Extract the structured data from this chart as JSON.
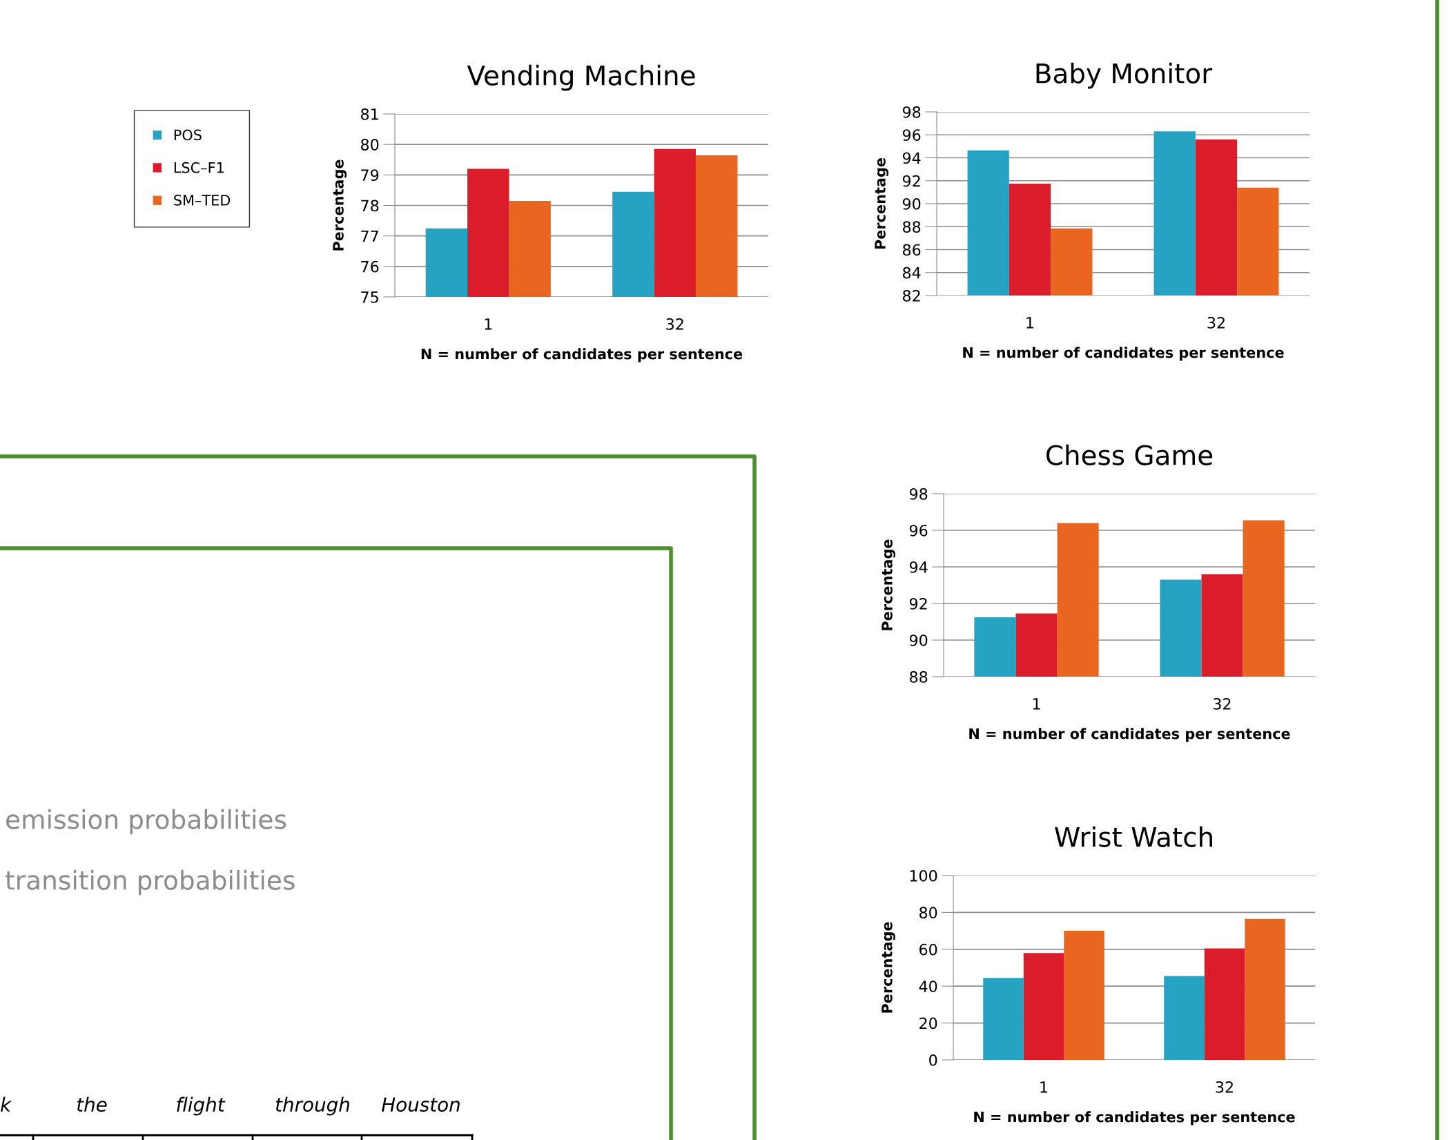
{
  "chart_data": [
    {
      "type": "bar",
      "title": "Vending Machine",
      "xlabel": "N = number of candidates per sentence",
      "ylabel": "Percentage",
      "categories": [
        "1",
        "32"
      ],
      "ylim": [
        75,
        81
      ],
      "yticks": [
        75,
        76,
        77,
        78,
        79,
        80,
        81
      ],
      "grid": "y",
      "legend": "left",
      "series": [
        {
          "name": "POS",
          "color": "#26a3c2",
          "values": [
            77.25,
            78.45
          ]
        },
        {
          "name": "LSC–F1",
          "color": "#db1c2b",
          "values": [
            79.2,
            79.85
          ]
        },
        {
          "name": "SM–TED",
          "color": "#e8661f",
          "values": [
            78.15,
            79.65
          ]
        }
      ]
    },
    {
      "type": "bar",
      "title": "Baby Monitor",
      "xlabel": "N = number of candidates per sentence",
      "ylabel": "Percentage",
      "categories": [
        "1",
        "32"
      ],
      "ylim": [
        82,
        98
      ],
      "yticks": [
        82,
        84,
        86,
        88,
        90,
        92,
        94,
        96,
        98
      ],
      "grid": "y",
      "series": [
        {
          "color": "#26a3c2",
          "values": [
            94.65,
            96.3
          ]
        },
        {
          "color": "#db1c2b",
          "values": [
            91.75,
            95.6
          ]
        },
        {
          "color": "#e8661f",
          "values": [
            87.85,
            91.4
          ]
        }
      ]
    },
    {
      "type": "bar",
      "title": "Chess Game",
      "xlabel": "N = number of candidates per sentence",
      "ylabel": "Percentage",
      "categories": [
        "1",
        "32"
      ],
      "ylim": [
        88,
        98
      ],
      "yticks": [
        88,
        90,
        92,
        94,
        96,
        98
      ],
      "grid": "y",
      "series": [
        {
          "color": "#26a3c2",
          "values": [
            91.25,
            93.3
          ]
        },
        {
          "color": "#db1c2b",
          "values": [
            91.45,
            93.6
          ]
        },
        {
          "color": "#e8661f",
          "values": [
            96.4,
            96.55
          ]
        }
      ]
    },
    {
      "type": "bar",
      "title": "Wrist Watch",
      "xlabel": "N = number of candidates per sentence",
      "ylabel": "Percentage",
      "categories": [
        "1",
        "32"
      ],
      "ylim": [
        0,
        100
      ],
      "yticks": [
        0,
        20,
        40,
        60,
        80,
        100
      ],
      "grid": "y",
      "series": [
        {
          "color": "#26a3c2",
          "values": [
            44.5,
            45.5
          ]
        },
        {
          "color": "#db1c2b",
          "values": [
            58,
            60.5
          ]
        },
        {
          "color": "#e8661f",
          "values": [
            70,
            76.5
          ]
        }
      ]
    },
    {
      "type": "other",
      "annotations": [
        "emission probabilities",
        "transition probabilities",
        "k",
        "the",
        "flight",
        "through",
        "Houston"
      ]
    }
  ]
}
